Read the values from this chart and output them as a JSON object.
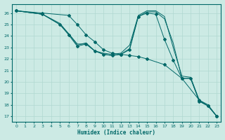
{
  "title": "",
  "xlabel": "Humidex (Indice chaleur)",
  "ylabel": "",
  "bg_color": "#cceae4",
  "grid_color": "#b0d8d0",
  "line_color": "#006868",
  "xlim": [
    -0.5,
    23.5
  ],
  "ylim": [
    16.5,
    26.8
  ],
  "xticks": [
    0,
    1,
    2,
    3,
    4,
    5,
    6,
    7,
    8,
    9,
    10,
    11,
    12,
    13,
    14,
    15,
    16,
    17,
    18,
    19,
    20,
    21,
    22,
    23
  ],
  "yticks": [
    17,
    18,
    19,
    20,
    21,
    22,
    23,
    24,
    25,
    26
  ],
  "lines": [
    {
      "x": [
        0,
        3,
        6,
        7,
        8,
        9,
        10,
        11,
        12,
        13,
        14,
        15,
        17,
        19,
        21,
        22,
        23
      ],
      "y": [
        26.2,
        26.0,
        25.8,
        25.0,
        24.1,
        23.5,
        22.8,
        22.5,
        22.4,
        22.3,
        22.2,
        22.0,
        21.5,
        20.3,
        18.4,
        17.9,
        17.0
      ],
      "has_markers": true
    },
    {
      "x": [
        0,
        3,
        5,
        6,
        7,
        8,
        9,
        10,
        11,
        12,
        13,
        14,
        15,
        16,
        17,
        18,
        19,
        20,
        21,
        22,
        23
      ],
      "y": [
        26.2,
        25.9,
        25.0,
        24.2,
        23.2,
        23.4,
        22.7,
        22.5,
        22.4,
        22.5,
        23.2,
        25.8,
        26.2,
        26.2,
        25.7,
        23.0,
        20.5,
        20.4,
        18.4,
        18.0,
        17.0
      ],
      "has_markers": false
    },
    {
      "x": [
        0,
        3,
        5,
        6,
        7,
        8,
        9,
        10,
        11,
        12,
        13,
        14,
        15,
        16,
        17,
        18,
        19,
        20,
        21,
        22,
        23
      ],
      "y": [
        26.2,
        25.9,
        25.1,
        24.2,
        23.3,
        23.3,
        22.7,
        22.4,
        22.3,
        22.4,
        22.9,
        25.7,
        26.1,
        26.1,
        25.5,
        23.4,
        20.3,
        20.3,
        18.3,
        17.9,
        17.0
      ],
      "has_markers": false
    },
    {
      "x": [
        0,
        3,
        5,
        6,
        7,
        8,
        9,
        10,
        11,
        12,
        13,
        14,
        15,
        16,
        17,
        18,
        19,
        20,
        21,
        22,
        23
      ],
      "y": [
        26.2,
        25.9,
        25.0,
        24.1,
        23.1,
        23.3,
        22.7,
        22.4,
        22.3,
        22.4,
        22.8,
        25.7,
        26.0,
        25.9,
        23.7,
        21.9,
        20.3,
        20.3,
        18.3,
        17.9,
        17.0
      ],
      "has_markers": true
    }
  ]
}
